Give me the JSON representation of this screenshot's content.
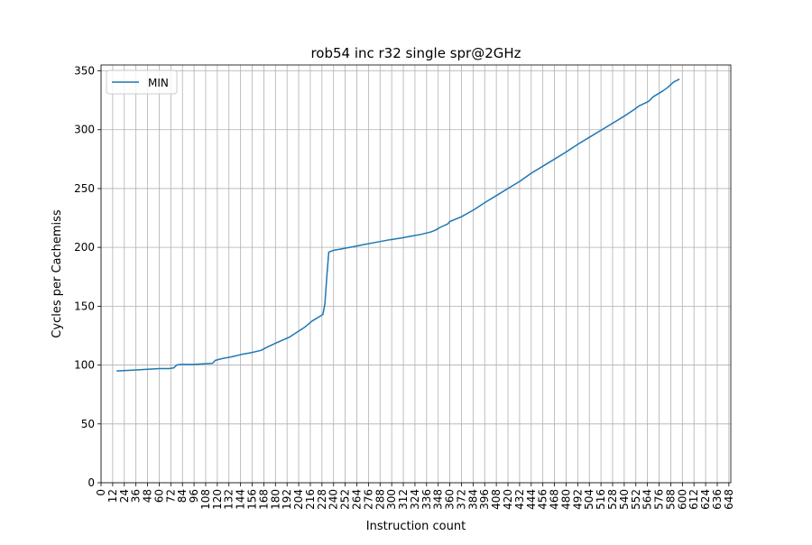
{
  "chart_data": {
    "type": "line",
    "title": "rob54 inc r32 single spr@2GHz",
    "xlabel": "Instruction count",
    "ylabel": "Cycles per Cachemiss",
    "xlim": [
      0,
      650
    ],
    "ylim": [
      0,
      355
    ],
    "x_ticks": [
      "0",
      "12",
      "24",
      "36",
      "48",
      "60",
      "72",
      "84",
      "96",
      "108",
      "120",
      "132",
      "144",
      "156",
      "168",
      "180",
      "192",
      "204",
      "216",
      "228",
      "240",
      "252",
      "264",
      "276",
      "288",
      "300",
      "312",
      "324",
      "336",
      "348",
      "360",
      "372",
      "384",
      "396",
      "408",
      "420",
      "432",
      "444",
      "456",
      "468",
      "480",
      "492",
      "504",
      "516",
      "528",
      "540",
      "552",
      "564",
      "576",
      "588",
      "600",
      "612",
      "624",
      "636",
      "648"
    ],
    "y_ticks": [
      "0",
      "50",
      "100",
      "150",
      "200",
      "250",
      "300",
      "350"
    ],
    "grid": true,
    "legend_position": "top-left",
    "series": [
      {
        "name": "MIN",
        "color": "#1f77b4",
        "points": [
          [
            16,
            95
          ],
          [
            30,
            95.5
          ],
          [
            40,
            96
          ],
          [
            50,
            96.5
          ],
          [
            60,
            97
          ],
          [
            70,
            97
          ],
          [
            75,
            97.5
          ],
          [
            78,
            100
          ],
          [
            82,
            100.5
          ],
          [
            95,
            100.5
          ],
          [
            105,
            101
          ],
          [
            115,
            101.5
          ],
          [
            118,
            104
          ],
          [
            125,
            105.5
          ],
          [
            135,
            107
          ],
          [
            145,
            109
          ],
          [
            155,
            110.5
          ],
          [
            165,
            112.5
          ],
          [
            172,
            115.5
          ],
          [
            180,
            118.5
          ],
          [
            195,
            124
          ],
          [
            210,
            132
          ],
          [
            218,
            137.5
          ],
          [
            225,
            141
          ],
          [
            229,
            143
          ],
          [
            231,
            152
          ],
          [
            233,
            175
          ],
          [
            235,
            196
          ],
          [
            240,
            197.5
          ],
          [
            250,
            199
          ],
          [
            260,
            200.5
          ],
          [
            272,
            202.5
          ],
          [
            285,
            204.5
          ],
          [
            298,
            206.5
          ],
          [
            310,
            208
          ],
          [
            320,
            209.5
          ],
          [
            330,
            211
          ],
          [
            340,
            213
          ],
          [
            345,
            214.5
          ],
          [
            350,
            217
          ],
          [
            358,
            220
          ],
          [
            360,
            222
          ],
          [
            372,
            226
          ],
          [
            385,
            232
          ],
          [
            396,
            238
          ],
          [
            408,
            244
          ],
          [
            420,
            250
          ],
          [
            432,
            256
          ],
          [
            444,
            263
          ],
          [
            456,
            269
          ],
          [
            468,
            275
          ],
          [
            480,
            281
          ],
          [
            492,
            287.5
          ],
          [
            504,
            293.5
          ],
          [
            516,
            299.5
          ],
          [
            528,
            305.5
          ],
          [
            540,
            311.5
          ],
          [
            550,
            317
          ],
          [
            555,
            320
          ],
          [
            565,
            324
          ],
          [
            570,
            328
          ],
          [
            580,
            333
          ],
          [
            585,
            336
          ],
          [
            591,
            340.5
          ],
          [
            597,
            343
          ]
        ]
      }
    ]
  }
}
